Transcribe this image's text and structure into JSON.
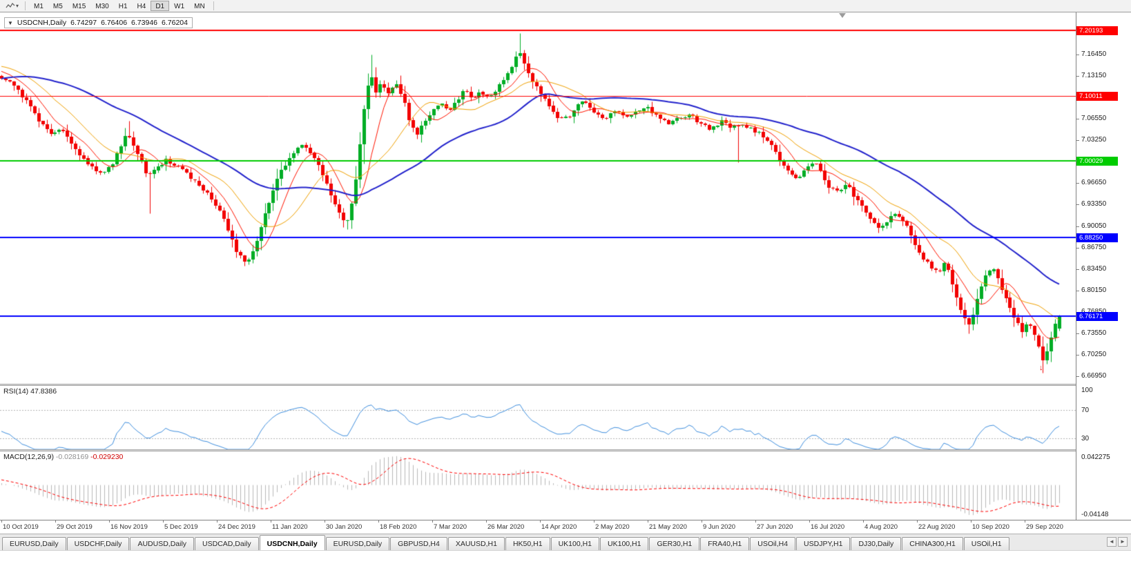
{
  "icons": {
    "one_click_collapse": "▼",
    "dropdown_caret": "▾",
    "tab_scroll_left": "◄",
    "tab_scroll_right": "►"
  },
  "toolbar": {
    "timeframes": [
      "M1",
      "M5",
      "M15",
      "M30",
      "H1",
      "H4",
      "D1",
      "W1",
      "MN"
    ],
    "active_timeframe": "D1"
  },
  "chart": {
    "symbol_info": "USDCNH,Daily",
    "ohlc": {
      "open": "6.74297",
      "high": "6.76406",
      "low": "6.73946",
      "close": "6.76204"
    },
    "y_domain": [
      6.658,
      7.229
    ],
    "shift_marker_t": 0.78,
    "price_axis_labels": [
      "7.16450",
      "7.13150",
      "7.09850",
      "7.06550",
      "7.03250",
      "6.99950",
      "6.96650",
      "6.93350",
      "6.90050",
      "6.86750",
      "6.83450",
      "6.80150",
      "6.76850",
      "6.73550",
      "6.70250",
      "6.66950"
    ],
    "hlines": [
      {
        "price": 7.20193,
        "label": "7.20193",
        "color": "#ff0000",
        "width": 2
      },
      {
        "price": 7.10011,
        "label": "7.10011",
        "color": "#ff0000",
        "width": 1
      },
      {
        "price": 7.00029,
        "label": "7.00029",
        "color": "#00cc00",
        "width": 2
      },
      {
        "price": 6.8825,
        "label": "6.88250",
        "color": "#0000ff",
        "width": 2
      },
      {
        "price": 6.76171,
        "label": "6.76171",
        "color": "#0000ff",
        "width": 2
      }
    ],
    "x_dates": [
      "10 Oct 2019",
      "29 Oct 2019",
      "16 Nov 2019",
      "5 Dec 2019",
      "24 Dec 2019",
      "11 Jan 2020",
      "30 Jan 2020",
      "18 Feb 2020",
      "7 Mar 2020",
      "26 Mar 2020",
      "14 Apr 2020",
      "2 May 2020",
      "21 May 2020",
      "9 Jun 2020",
      "27 Jun 2020",
      "16 Jul 2020",
      "4 Aug 2020",
      "22 Aug 2020",
      "10 Sep 2020",
      "29 Sep 2020"
    ],
    "mas": [
      {
        "name": "ma-fast-red",
        "period": 8,
        "color": "#ff1400",
        "width": 1
      },
      {
        "name": "ma-mid-orange",
        "period": 17,
        "color": "#f0a000",
        "width": 1
      },
      {
        "name": "ma-slow-blue",
        "period": 45,
        "color": "#2222cc",
        "width": 2
      }
    ],
    "candles": {
      "count": 258,
      "warmup": 60,
      "seed": 42,
      "up_color": "#00ad25",
      "down_color": "#f20000",
      "anchors": [
        [
          -0.25,
          7.045
        ],
        [
          -0.2,
          7.065
        ],
        [
          -0.15,
          7.095
        ],
        [
          -0.1,
          7.13
        ],
        [
          -0.05,
          7.155
        ],
        [
          -0.02,
          7.145
        ],
        [
          0.0,
          7.128
        ],
        [
          0.012,
          7.118
        ],
        [
          0.024,
          7.092
        ],
        [
          0.036,
          7.062
        ],
        [
          0.048,
          7.042
        ],
        [
          0.056,
          7.05
        ],
        [
          0.064,
          7.034
        ],
        [
          0.074,
          7.01
        ],
        [
          0.085,
          6.992
        ],
        [
          0.096,
          6.98
        ],
        [
          0.106,
          7.0
        ],
        [
          0.113,
          7.025
        ],
        [
          0.119,
          7.046
        ],
        [
          0.126,
          7.02
        ],
        [
          0.133,
          6.996
        ],
        [
          0.139,
          6.975
        ],
        [
          0.147,
          6.992
        ],
        [
          0.156,
          7.002
        ],
        [
          0.166,
          6.993
        ],
        [
          0.176,
          6.978
        ],
        [
          0.186,
          6.964
        ],
        [
          0.196,
          6.95
        ],
        [
          0.206,
          6.925
        ],
        [
          0.213,
          6.898
        ],
        [
          0.22,
          6.868
        ],
        [
          0.227,
          6.852
        ],
        [
          0.232,
          6.847
        ],
        [
          0.238,
          6.865
        ],
        [
          0.245,
          6.898
        ],
        [
          0.252,
          6.935
        ],
        [
          0.259,
          6.965
        ],
        [
          0.267,
          6.992
        ],
        [
          0.275,
          7.012
        ],
        [
          0.283,
          7.025
        ],
        [
          0.29,
          7.018
        ],
        [
          0.298,
          6.998
        ],
        [
          0.306,
          6.968
        ],
        [
          0.313,
          6.94
        ],
        [
          0.32,
          6.915
        ],
        [
          0.326,
          6.903
        ],
        [
          0.332,
          6.94
        ],
        [
          0.338,
          7.02
        ],
        [
          0.344,
          7.1
        ],
        [
          0.349,
          7.135
        ],
        [
          0.354,
          7.108
        ],
        [
          0.36,
          7.12
        ],
        [
          0.366,
          7.103
        ],
        [
          0.373,
          7.117
        ],
        [
          0.38,
          7.095
        ],
        [
          0.387,
          7.052
        ],
        [
          0.393,
          7.042
        ],
        [
          0.4,
          7.06
        ],
        [
          0.408,
          7.08
        ],
        [
          0.415,
          7.09
        ],
        [
          0.422,
          7.077
        ],
        [
          0.43,
          7.093
        ],
        [
          0.438,
          7.11
        ],
        [
          0.445,
          7.097
        ],
        [
          0.452,
          7.107
        ],
        [
          0.46,
          7.097
        ],
        [
          0.468,
          7.11
        ],
        [
          0.476,
          7.128
        ],
        [
          0.483,
          7.15
        ],
        [
          0.489,
          7.172
        ],
        [
          0.494,
          7.152
        ],
        [
          0.5,
          7.13
        ],
        [
          0.507,
          7.112
        ],
        [
          0.514,
          7.096
        ],
        [
          0.521,
          7.08
        ],
        [
          0.528,
          7.063
        ],
        [
          0.536,
          7.07
        ],
        [
          0.544,
          7.086
        ],
        [
          0.551,
          7.094
        ],
        [
          0.559,
          7.08
        ],
        [
          0.567,
          7.064
        ],
        [
          0.575,
          7.072
        ],
        [
          0.583,
          7.079
        ],
        [
          0.591,
          7.068
        ],
        [
          0.6,
          7.076
        ],
        [
          0.61,
          7.082
        ],
        [
          0.62,
          7.07
        ],
        [
          0.63,
          7.058
        ],
        [
          0.64,
          7.066
        ],
        [
          0.65,
          7.071
        ],
        [
          0.66,
          7.058
        ],
        [
          0.67,
          7.049
        ],
        [
          0.68,
          7.061
        ],
        [
          0.69,
          7.052
        ],
        [
          0.7,
          7.055
        ],
        [
          0.71,
          7.048
        ],
        [
          0.72,
          7.04
        ],
        [
          0.728,
          7.022
        ],
        [
          0.736,
          7.002
        ],
        [
          0.744,
          6.984
        ],
        [
          0.752,
          6.972
        ],
        [
          0.76,
          6.988
        ],
        [
          0.768,
          7.0
        ],
        [
          0.775,
          6.982
        ],
        [
          0.782,
          6.962
        ],
        [
          0.79,
          6.952
        ],
        [
          0.798,
          6.966
        ],
        [
          0.806,
          6.946
        ],
        [
          0.814,
          6.928
        ],
        [
          0.822,
          6.912
        ],
        [
          0.83,
          6.898
        ],
        [
          0.838,
          6.91
        ],
        [
          0.846,
          6.92
        ],
        [
          0.854,
          6.904
        ],
        [
          0.862,
          6.88
        ],
        [
          0.87,
          6.855
        ],
        [
          0.878,
          6.838
        ],
        [
          0.886,
          6.828
        ],
        [
          0.892,
          6.845
        ],
        [
          0.898,
          6.815
        ],
        [
          0.904,
          6.785
        ],
        [
          0.91,
          6.76
        ],
        [
          0.915,
          6.748
        ],
        [
          0.92,
          6.775
        ],
        [
          0.925,
          6.805
        ],
        [
          0.93,
          6.825
        ],
        [
          0.936,
          6.838
        ],
        [
          0.942,
          6.818
        ],
        [
          0.948,
          6.795
        ],
        [
          0.954,
          6.772
        ],
        [
          0.96,
          6.752
        ],
        [
          0.965,
          6.74
        ],
        [
          0.97,
          6.752
        ],
        [
          0.975,
          6.738
        ],
        [
          0.98,
          6.715
        ],
        [
          0.985,
          6.692
        ],
        [
          0.99,
          6.715
        ],
        [
          0.995,
          6.745
        ],
        [
          1.0,
          6.762
        ]
      ],
      "wick_overrides": [
        {
          "t": 0.119,
          "high": 7.062
        },
        {
          "t": 0.139,
          "low": 6.92
        },
        {
          "t": 0.232,
          "low": 6.843
        },
        {
          "t": 0.326,
          "low": 6.896
        },
        {
          "t": 0.349,
          "high": 7.1645
        },
        {
          "t": 0.489,
          "high": 7.197
        },
        {
          "t": 0.695,
          "low": 6.999
        },
        {
          "t": 0.915,
          "low": 6.735
        },
        {
          "t": 0.985,
          "low": 6.675
        }
      ]
    }
  },
  "rsi": {
    "label": "RSI(14)",
    "value": "47.8386",
    "period": 14,
    "color": "#3e8ede",
    "domain": [
      14,
      104
    ],
    "levels": [
      {
        "value": 100,
        "label": "100",
        "dotted": false
      },
      {
        "value": 70,
        "label": "70",
        "dotted": true
      },
      {
        "value": 30,
        "label": "30",
        "dotted": true
      }
    ]
  },
  "macd": {
    "label": "MACD(12,26,9)",
    "value_main": "-0.028169",
    "value_signal": "-0.029230",
    "axis_top": "0.042275",
    "axis_bottom": "-0.04148",
    "fast": 12,
    "slow": 26,
    "signal": 9,
    "hist_color": "#b8b8b8",
    "signal_color": "#ff0000"
  },
  "markers": {
    "sell_arrow": {
      "t": 0.983,
      "price": 6.683,
      "glyph": "↓"
    }
  },
  "tabs": {
    "active_index": 4,
    "items": [
      "EURUSD,Daily",
      "USDCHF,Daily",
      "AUDUSD,Daily",
      "USDCAD,Daily",
      "USDCNH,Daily",
      "EURUSD,Daily",
      "GBPUSD,H4",
      "XAUUSD,H1",
      "HK50,H1",
      "UK100,H1",
      "UK100,H1",
      "GER30,H1",
      "FRA40,H1",
      "USOil,H4",
      "USDJPY,H1",
      "DJ30,Daily",
      "CHINA300,H1",
      "USOil,H1"
    ]
  }
}
